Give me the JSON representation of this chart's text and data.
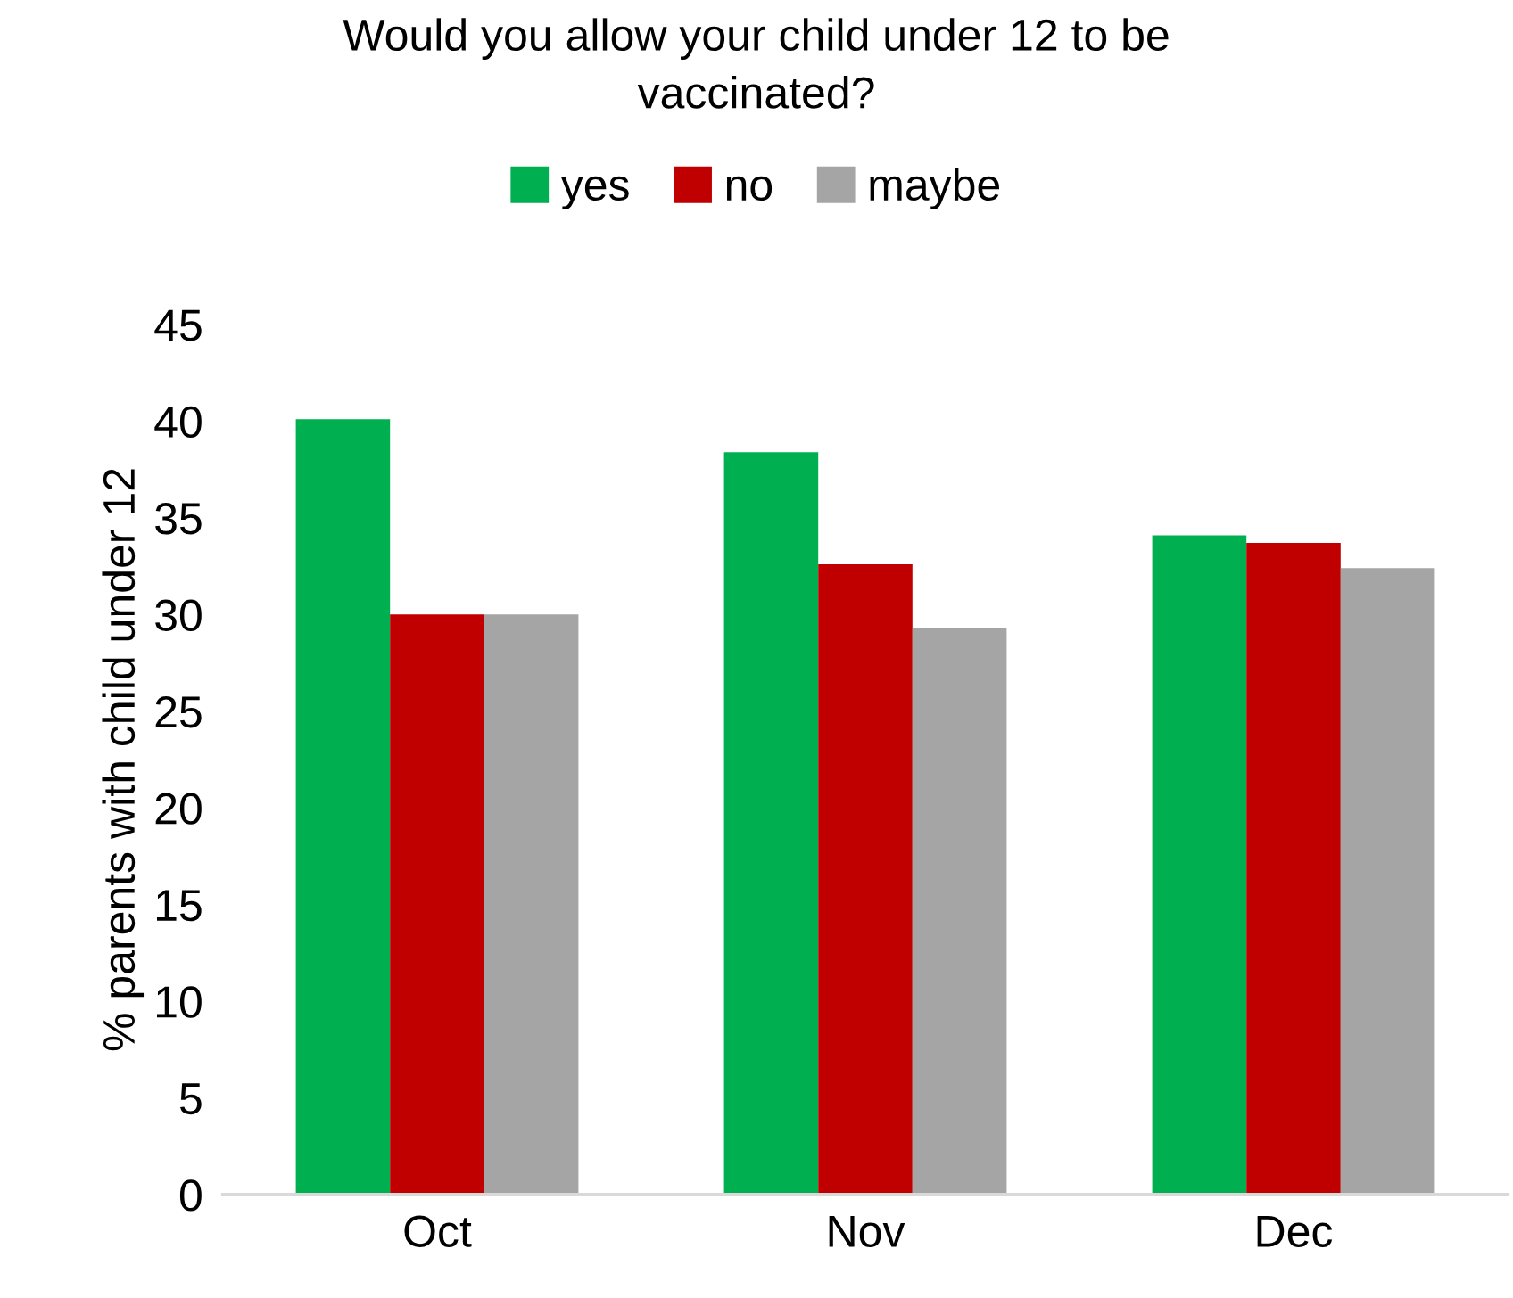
{
  "chart_data": {
    "type": "bar",
    "title": "Would you allow your child under 12 to be\nvaccinated?",
    "ylabel": "% parents with child under 12",
    "categories": [
      "Oct",
      "Nov",
      "Dec"
    ],
    "series": [
      {
        "name": "yes",
        "color": "#00b050",
        "values": [
          40.1,
          38.4,
          34.1
        ]
      },
      {
        "name": "no",
        "color": "#c00000",
        "values": [
          30.0,
          32.6,
          33.7
        ]
      },
      {
        "name": "maybe",
        "color": "#a5a5a5",
        "values": [
          30.0,
          29.3,
          32.4
        ]
      }
    ],
    "ylim": [
      0,
      45
    ],
    "yticks": [
      0,
      5,
      10,
      15,
      20,
      25,
      30,
      35,
      40,
      45
    ],
    "grid": false,
    "legend": "top"
  }
}
